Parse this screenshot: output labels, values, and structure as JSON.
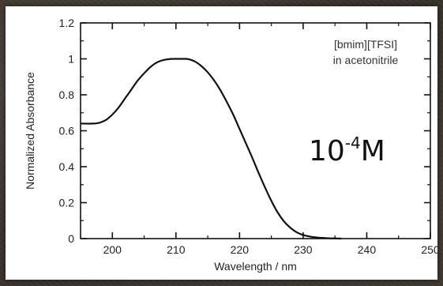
{
  "chart_data": {
    "type": "line",
    "title": "",
    "xlabel": "Wavelength / nm",
    "ylabel": "Normalized Absorbance",
    "xlim": [
      195,
      250
    ],
    "ylim": [
      0,
      1.2
    ],
    "x_ticks": [
      "200",
      "210",
      "220",
      "230",
      "240",
      "250"
    ],
    "y_ticks": [
      "0",
      "0.2",
      "0.4",
      "0.6",
      "0.8",
      "1",
      "1.2"
    ],
    "grid": false,
    "annotations": {
      "sample_line1": "[bmim][TFSI]",
      "sample_line2": "in acetonitrile",
      "concentration_base": "10",
      "concentration_exponent": "-4",
      "concentration_unit": "M"
    },
    "series": [
      {
        "x": [
          195,
          197,
          198,
          199,
          200,
          201,
          202,
          203,
          204,
          205,
          206,
          207,
          208,
          209,
          210,
          211,
          211.5,
          212,
          213,
          214,
          215,
          216,
          217,
          218,
          219,
          220,
          221,
          222,
          223,
          224,
          225,
          226,
          227,
          228,
          229,
          230,
          231,
          232,
          233,
          234,
          235,
          236
        ],
        "y": [
          0.64,
          0.64,
          0.645,
          0.66,
          0.69,
          0.73,
          0.78,
          0.83,
          0.88,
          0.92,
          0.955,
          0.98,
          0.993,
          0.999,
          1.0,
          1.0,
          1.0,
          0.998,
          0.985,
          0.96,
          0.925,
          0.88,
          0.825,
          0.76,
          0.69,
          0.61,
          0.53,
          0.45,
          0.365,
          0.285,
          0.21,
          0.145,
          0.095,
          0.06,
          0.035,
          0.02,
          0.012,
          0.007,
          0.004,
          0.002,
          0.001,
          0.0
        ]
      }
    ]
  }
}
